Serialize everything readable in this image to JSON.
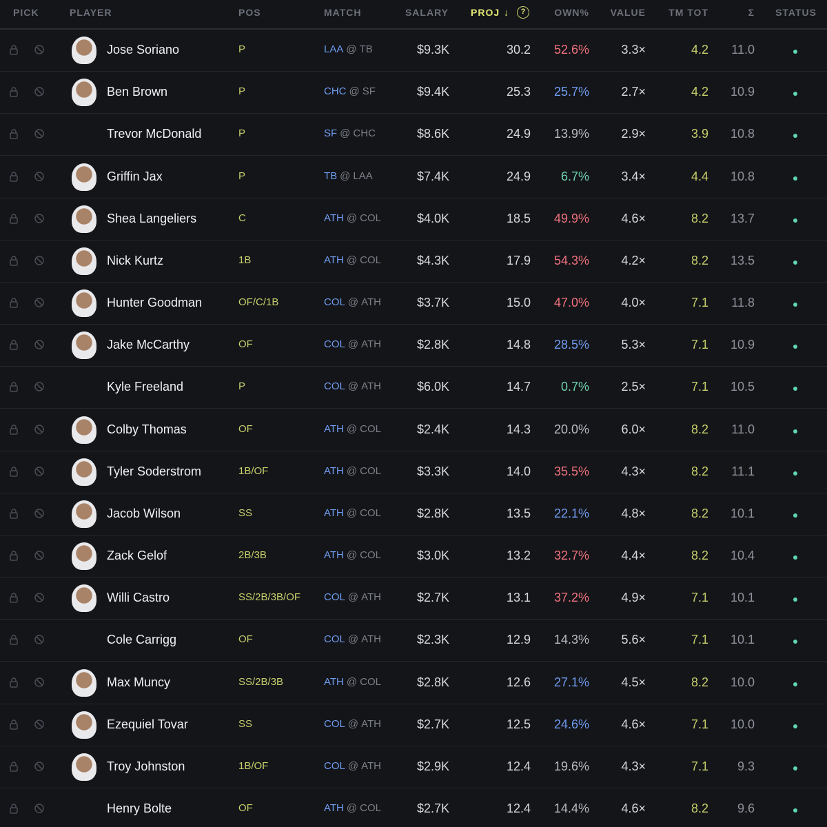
{
  "header": [
    {
      "label": "PICK"
    },
    {
      "label": "PLAYER"
    },
    {
      "label": "POS"
    },
    {
      "label": "MATCH"
    },
    {
      "label": "SALARY"
    },
    {
      "label": "PROJ",
      "sort": "↓",
      "help": "?"
    },
    {
      "label": "OWN%"
    },
    {
      "label": "VALUE"
    },
    {
      "label": "TM TOT"
    },
    {
      "label": "Σ"
    },
    {
      "label": "STATUS"
    }
  ],
  "rows": [
    {
      "name": "Jose Soriano",
      "photo": true,
      "pos": "P",
      "team": "LAA",
      "at": "@",
      "opp": "TB",
      "salary": "$9.3K",
      "proj": "30.2",
      "own": "52.6%",
      "own_color": "#f0727e",
      "value": "3.3×",
      "tm_tot": "4.2",
      "sigma": "11.0"
    },
    {
      "name": "Ben Brown",
      "photo": true,
      "pos": "P",
      "team": "CHC",
      "at": "@",
      "opp": "SF",
      "salary": "$9.4K",
      "proj": "25.3",
      "own": "25.7%",
      "own_color": "#6f9cf0",
      "value": "2.7×",
      "tm_tot": "4.2",
      "sigma": "10.9"
    },
    {
      "name": "Trevor McDonald",
      "photo": false,
      "pos": "P",
      "team": "SF",
      "at": "@",
      "opp": "CHC",
      "salary": "$8.6K",
      "proj": "24.9",
      "own": "13.9%",
      "own_color": "#b8bcc4",
      "value": "2.9×",
      "tm_tot": "3.9",
      "sigma": "10.8"
    },
    {
      "name": "Griffin Jax",
      "photo": true,
      "pos": "P",
      "team": "TB",
      "at": "@",
      "opp": "LAA",
      "salary": "$7.4K",
      "proj": "24.9",
      "own": "6.7%",
      "own_color": "#6fd3ae",
      "value": "3.4×",
      "tm_tot": "4.4",
      "sigma": "10.8"
    },
    {
      "name": "Shea Langeliers",
      "photo": true,
      "pos": "C",
      "team": "ATH",
      "at": "@",
      "opp": "COL",
      "salary": "$4.0K",
      "proj": "18.5",
      "own": "49.9%",
      "own_color": "#f0727e",
      "value": "4.6×",
      "tm_tot": "8.2",
      "sigma": "13.7"
    },
    {
      "name": "Nick Kurtz",
      "photo": true,
      "pos": "1B",
      "team": "ATH",
      "at": "@",
      "opp": "COL",
      "salary": "$4.3K",
      "proj": "17.9",
      "own": "54.3%",
      "own_color": "#f0727e",
      "value": "4.2×",
      "tm_tot": "8.2",
      "sigma": "13.5"
    },
    {
      "name": "Hunter Goodman",
      "photo": true,
      "pos": "OF/C/1B",
      "team": "COL",
      "at": "@",
      "opp": "ATH",
      "salary": "$3.7K",
      "proj": "15.0",
      "own": "47.0%",
      "own_color": "#f0727e",
      "value": "4.0×",
      "tm_tot": "7.1",
      "sigma": "11.8"
    },
    {
      "name": "Jake McCarthy",
      "photo": true,
      "pos": "OF",
      "team": "COL",
      "at": "@",
      "opp": "ATH",
      "salary": "$2.8K",
      "proj": "14.8",
      "own": "28.5%",
      "own_color": "#6f9cf0",
      "value": "5.3×",
      "tm_tot": "7.1",
      "sigma": "10.9"
    },
    {
      "name": "Kyle Freeland",
      "photo": false,
      "pos": "P",
      "team": "COL",
      "at": "@",
      "opp": "ATH",
      "salary": "$6.0K",
      "proj": "14.7",
      "own": "0.7%",
      "own_color": "#6fd3ae",
      "value": "2.5×",
      "tm_tot": "7.1",
      "sigma": "10.5"
    },
    {
      "name": "Colby Thomas",
      "photo": true,
      "pos": "OF",
      "team": "ATH",
      "at": "@",
      "opp": "COL",
      "salary": "$2.4K",
      "proj": "14.3",
      "own": "20.0%",
      "own_color": "#b8bcc4",
      "value": "6.0×",
      "tm_tot": "8.2",
      "sigma": "11.0"
    },
    {
      "name": "Tyler Soderstrom",
      "photo": true,
      "pos": "1B/OF",
      "team": "ATH",
      "at": "@",
      "opp": "COL",
      "salary": "$3.3K",
      "proj": "14.0",
      "own": "35.5%",
      "own_color": "#f0727e",
      "value": "4.3×",
      "tm_tot": "8.2",
      "sigma": "11.1"
    },
    {
      "name": "Jacob Wilson",
      "photo": true,
      "pos": "SS",
      "team": "ATH",
      "at": "@",
      "opp": "COL",
      "salary": "$2.8K",
      "proj": "13.5",
      "own": "22.1%",
      "own_color": "#6f9cf0",
      "value": "4.8×",
      "tm_tot": "8.2",
      "sigma": "10.1"
    },
    {
      "name": "Zack Gelof",
      "photo": true,
      "pos": "2B/3B",
      "team": "ATH",
      "at": "@",
      "opp": "COL",
      "salary": "$3.0K",
      "proj": "13.2",
      "own": "32.7%",
      "own_color": "#f0727e",
      "value": "4.4×",
      "tm_tot": "8.2",
      "sigma": "10.4"
    },
    {
      "name": "Willi Castro",
      "photo": true,
      "pos": "SS/2B/3B/OF",
      "team": "COL",
      "at": "@",
      "opp": "ATH",
      "salary": "$2.7K",
      "proj": "13.1",
      "own": "37.2%",
      "own_color": "#f0727e",
      "value": "4.9×",
      "tm_tot": "7.1",
      "sigma": "10.1"
    },
    {
      "name": "Cole Carrigg",
      "photo": false,
      "pos": "OF",
      "team": "COL",
      "at": "@",
      "opp": "ATH",
      "salary": "$2.3K",
      "proj": "12.9",
      "own": "14.3%",
      "own_color": "#b8bcc4",
      "value": "5.6×",
      "tm_tot": "7.1",
      "sigma": "10.1"
    },
    {
      "name": "Max Muncy",
      "photo": true,
      "pos": "SS/2B/3B",
      "team": "ATH",
      "at": "@",
      "opp": "COL",
      "salary": "$2.8K",
      "proj": "12.6",
      "own": "27.1%",
      "own_color": "#6f9cf0",
      "value": "4.5×",
      "tm_tot": "8.2",
      "sigma": "10.0"
    },
    {
      "name": "Ezequiel Tovar",
      "photo": true,
      "pos": "SS",
      "team": "COL",
      "at": "@",
      "opp": "ATH",
      "salary": "$2.7K",
      "proj": "12.5",
      "own": "24.6%",
      "own_color": "#6f9cf0",
      "value": "4.6×",
      "tm_tot": "7.1",
      "sigma": "10.0"
    },
    {
      "name": "Troy Johnston",
      "photo": true,
      "pos": "1B/OF",
      "team": "COL",
      "at": "@",
      "opp": "ATH",
      "salary": "$2.9K",
      "proj": "12.4",
      "own": "19.6%",
      "own_color": "#b8bcc4",
      "value": "4.3×",
      "tm_tot": "7.1",
      "sigma": "9.3"
    },
    {
      "name": "Henry Bolte",
      "photo": false,
      "pos": "OF",
      "team": "ATH",
      "at": "@",
      "opp": "COL",
      "salary": "$2.7K",
      "proj": "12.4",
      "own": "14.4%",
      "own_color": "#b8bcc4",
      "value": "4.6×",
      "tm_tot": "8.2",
      "sigma": "9.6"
    }
  ]
}
